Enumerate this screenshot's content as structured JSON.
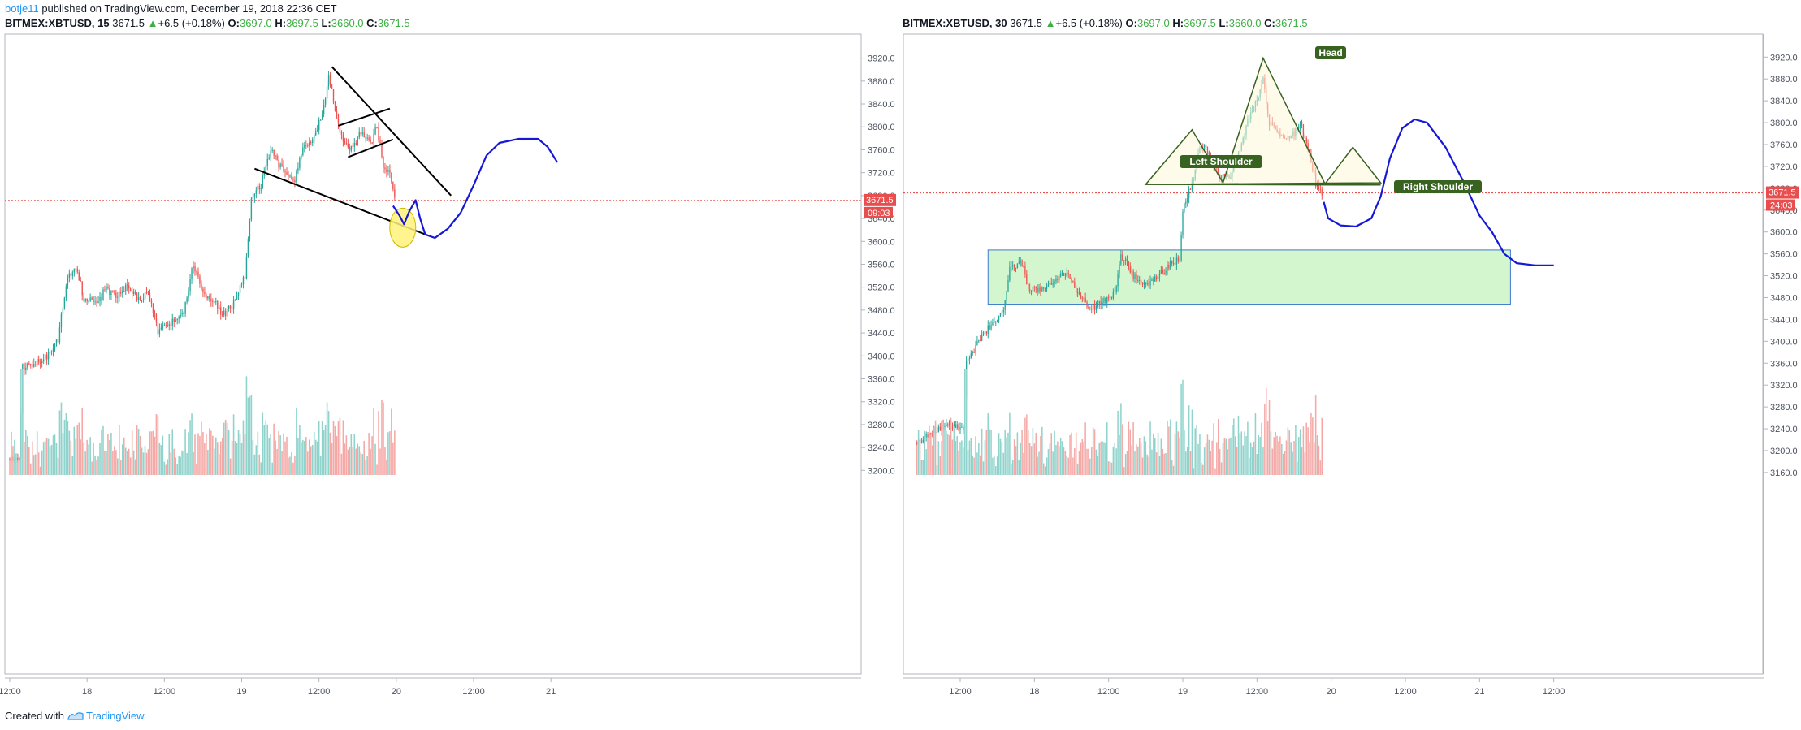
{
  "publisher": {
    "user": "botje11",
    "text": "published on TradingView.com, December 19, 2018 22:36 CET"
  },
  "footer": {
    "created_with": "Created with",
    "brand": "TradingView"
  },
  "colors": {
    "up": "#26a69a",
    "down": "#ef5350",
    "vol_up": "#8fd3cc",
    "vol_down": "#f5a9a6",
    "drawing_blue": "#1518d6",
    "pattern_green": "#38621f",
    "zone_fill": "#ccf5c6",
    "zone_border": "#3a7ad0",
    "price_line": "#e53935",
    "highlight_yellow": "#fff27a",
    "axis_text": "#4c525e",
    "grid": "#d7d9dd"
  },
  "chart_data": [
    {
      "type": "candlestick",
      "symbol": "BITMEX:XBTUSD",
      "interval": "15",
      "last": "3671.5",
      "change": "+6.5 (+0.18%)",
      "ohlc": {
        "o": "3697.0",
        "h": "3697.5",
        "l": "3660.0",
        "c": "3671.5"
      },
      "ohlc_labels": {
        "o": "O:",
        "h": "H:",
        "l": "L:",
        "c": "C:"
      },
      "price_ticks": [
        3200,
        3240,
        3280,
        3320,
        3360,
        3400,
        3440,
        3480,
        3520,
        3560,
        3600,
        3640,
        3680,
        3720,
        3760,
        3800,
        3840,
        3880,
        3920
      ],
      "price_tick_labels": [
        "3200.0",
        "3240.0",
        "3280.0",
        "3320.0",
        "3360.0",
        "3400.0",
        "3440.0",
        "3480.0",
        "3520.0",
        "3560.0",
        "3600.0",
        "3640.0",
        "3680.0",
        "3720.0",
        "3760.0",
        "3800.0",
        "3840.0",
        "3880.0",
        "3920.0"
      ],
      "ylim": [
        3182,
        3962
      ],
      "x_range": [
        0,
        72
      ],
      "time_ticks": [
        {
          "x": 0,
          "label": "12:00"
        },
        {
          "x": 12,
          "label": "18"
        },
        {
          "x": 24,
          "label": "12:00"
        },
        {
          "x": 36,
          "label": "19"
        },
        {
          "x": 48,
          "label": "12:00"
        },
        {
          "x": 60,
          "label": "20"
        },
        {
          "x": 72,
          "label": "12:00"
        },
        {
          "x": 84,
          "label": "21"
        }
      ],
      "x_max": 86,
      "price_label": "3671.5",
      "countdown": "09:03",
      "current_price": 3671.5,
      "anchors": [
        {
          "x": 0,
          "p": 3220
        },
        {
          "x": 1.5,
          "p": 3225
        },
        {
          "x": 2,
          "p": 3380
        },
        {
          "x": 4,
          "p": 3390
        },
        {
          "x": 6,
          "p": 3400
        },
        {
          "x": 7.5,
          "p": 3430
        },
        {
          "x": 9,
          "p": 3540
        },
        {
          "x": 10.5,
          "p": 3550
        },
        {
          "x": 11.5,
          "p": 3500
        },
        {
          "x": 13.5,
          "p": 3490
        },
        {
          "x": 15,
          "p": 3520
        },
        {
          "x": 16.5,
          "p": 3500
        },
        {
          "x": 18,
          "p": 3520
        },
        {
          "x": 20,
          "p": 3500
        },
        {
          "x": 21.5,
          "p": 3510
        },
        {
          "x": 23,
          "p": 3445
        },
        {
          "x": 25,
          "p": 3455
        },
        {
          "x": 27,
          "p": 3480
        },
        {
          "x": 28.5,
          "p": 3560
        },
        {
          "x": 30,
          "p": 3510
        },
        {
          "x": 31.5,
          "p": 3500
        },
        {
          "x": 33,
          "p": 3470
        },
        {
          "x": 35,
          "p": 3495
        },
        {
          "x": 36.5,
          "p": 3540
        },
        {
          "x": 37.5,
          "p": 3670
        },
        {
          "x": 39,
          "p": 3700
        },
        {
          "x": 40.5,
          "p": 3760
        },
        {
          "x": 42,
          "p": 3730
        },
        {
          "x": 44,
          "p": 3700
        },
        {
          "x": 45.5,
          "p": 3760
        },
        {
          "x": 47,
          "p": 3780
        },
        {
          "x": 48.5,
          "p": 3820
        },
        {
          "x": 49.5,
          "p": 3890
        },
        {
          "x": 50.5,
          "p": 3830
        },
        {
          "x": 51.5,
          "p": 3780
        },
        {
          "x": 53,
          "p": 3760
        },
        {
          "x": 54.5,
          "p": 3790
        },
        {
          "x": 56,
          "p": 3770
        },
        {
          "x": 57,
          "p": 3800
        },
        {
          "x": 58,
          "p": 3730
        },
        {
          "x": 59,
          "p": 3720
        },
        {
          "x": 59.8,
          "p": 3672
        }
      ],
      "drawings": {
        "upper_trendline": [
          {
            "x": 50,
            "p": 3905
          },
          {
            "x": 68.5,
            "p": 3680
          }
        ],
        "lower_trendline": [
          {
            "x": 38,
            "p": 3727
          },
          {
            "x": 65,
            "p": 3610
          }
        ],
        "channel_upper": [
          {
            "x": 51,
            "p": 3802
          },
          {
            "x": 59,
            "p": 3832
          }
        ],
        "channel_lower": [
          {
            "x": 52.5,
            "p": 3747
          },
          {
            "x": 59.5,
            "p": 3778
          }
        ],
        "projection": [
          {
            "x": 59.5,
            "p": 3662
          },
          {
            "x": 60.5,
            "p": 3645
          },
          {
            "x": 61.2,
            "p": 3630
          },
          {
            "x": 62,
            "p": 3652
          },
          {
            "x": 63,
            "p": 3672
          },
          {
            "x": 63.7,
            "p": 3640
          },
          {
            "x": 64.5,
            "p": 3612
          },
          {
            "x": 66,
            "p": 3606
          },
          {
            "x": 68,
            "p": 3622
          },
          {
            "x": 70,
            "p": 3650
          },
          {
            "x": 72,
            "p": 3698
          },
          {
            "x": 74,
            "p": 3750
          },
          {
            "x": 76,
            "p": 3772
          },
          {
            "x": 79,
            "p": 3779
          },
          {
            "x": 82,
            "p": 3779
          },
          {
            "x": 83.5,
            "p": 3765
          },
          {
            "x": 85,
            "p": 3738
          }
        ],
        "highlight": {
          "x": 61,
          "p": 3624
        }
      }
    },
    {
      "type": "candlestick",
      "symbol": "BITMEX:XBTUSD",
      "interval": "30",
      "last": "3671.5",
      "change": "+6.5 (+0.18%)",
      "ohlc": {
        "o": "3697.0",
        "h": "3697.5",
        "l": "3660.0",
        "c": "3671.5"
      },
      "ohlc_labels": {
        "o": "O:",
        "h": "H:",
        "l": "L:",
        "c": "C:"
      },
      "price_ticks": [
        3160,
        3200,
        3240,
        3280,
        3320,
        3360,
        3400,
        3440,
        3480,
        3520,
        3560,
        3600,
        3640,
        3680,
        3720,
        3760,
        3800,
        3840,
        3880,
        3920
      ],
      "price_tick_labels": [
        "3160.0",
        "3200.0",
        "3240.0",
        "3280.0",
        "3320.0",
        "3360.0",
        "3400.0",
        "3440.0",
        "3480.0",
        "3520.0",
        "3560.0",
        "3600.0",
        "3640.0",
        "3680.0",
        "3720.0",
        "3760.0",
        "3800.0",
        "3840.0",
        "3880.0",
        "3920.0"
      ],
      "ylim": [
        3145,
        3962
      ],
      "x_range": [
        0,
        72
      ],
      "time_ticks": [
        {
          "x": 0,
          "label": "12:00"
        },
        {
          "x": 12,
          "label": "18"
        },
        {
          "x": 24,
          "label": "12:00"
        },
        {
          "x": 36,
          "label": "19"
        },
        {
          "x": 48,
          "label": "12:00"
        },
        {
          "x": 60,
          "label": "20"
        },
        {
          "x": 72,
          "label": "12:00"
        },
        {
          "x": 84,
          "label": "21"
        },
        {
          "x": 96,
          "label": "12:00"
        }
      ],
      "x_max": 113,
      "price_label": "3671.5",
      "countdown": "24:03",
      "current_price": 3671.5,
      "anchors": [
        {
          "x": -7,
          "p": 3215
        },
        {
          "x": -5,
          "p": 3232
        },
        {
          "x": -3,
          "p": 3245
        },
        {
          "x": -1,
          "p": 3248
        },
        {
          "x": 0.5,
          "p": 3240
        },
        {
          "x": 1,
          "p": 3360
        },
        {
          "x": 3,
          "p": 3400
        },
        {
          "x": 5,
          "p": 3430
        },
        {
          "x": 7,
          "p": 3460
        },
        {
          "x": 8,
          "p": 3530
        },
        {
          "x": 10,
          "p": 3545
        },
        {
          "x": 11,
          "p": 3500
        },
        {
          "x": 13,
          "p": 3495
        },
        {
          "x": 15,
          "p": 3510
        },
        {
          "x": 17,
          "p": 3525
        },
        {
          "x": 19,
          "p": 3490
        },
        {
          "x": 21,
          "p": 3460
        },
        {
          "x": 23,
          "p": 3470
        },
        {
          "x": 25,
          "p": 3490
        },
        {
          "x": 26,
          "p": 3560
        },
        {
          "x": 28,
          "p": 3520
        },
        {
          "x": 30,
          "p": 3500
        },
        {
          "x": 32,
          "p": 3520
        },
        {
          "x": 34,
          "p": 3540
        },
        {
          "x": 35.5,
          "p": 3550
        },
        {
          "x": 36,
          "p": 3640
        },
        {
          "x": 37.5,
          "p": 3690
        },
        {
          "x": 39,
          "p": 3760
        },
        {
          "x": 40.5,
          "p": 3740
        },
        {
          "x": 42,
          "p": 3700
        },
        {
          "x": 43.5,
          "p": 3700
        },
        {
          "x": 45,
          "p": 3740
        },
        {
          "x": 46.5,
          "p": 3800
        },
        {
          "x": 48,
          "p": 3840
        },
        {
          "x": 49,
          "p": 3880
        },
        {
          "x": 50,
          "p": 3800
        },
        {
          "x": 52,
          "p": 3770
        },
        {
          "x": 54,
          "p": 3780
        },
        {
          "x": 55,
          "p": 3800
        },
        {
          "x": 56.5,
          "p": 3740
        },
        {
          "x": 57.5,
          "p": 3690
        },
        {
          "x": 58.5,
          "p": 3672
        }
      ],
      "pattern": {
        "left_shoulder_label": "Left Shoulder",
        "head_label": "Head",
        "right_shoulder_label": "Right Shoulder",
        "outline": [
          {
            "x": 30,
            "p": 3687
          },
          {
            "x": 37.5,
            "p": 3787
          },
          {
            "x": 42.5,
            "p": 3690
          },
          {
            "x": 49,
            "p": 3918
          },
          {
            "x": 59,
            "p": 3688
          },
          {
            "x": 63.5,
            "p": 3755
          },
          {
            "x": 68,
            "p": 3690
          }
        ],
        "neckline": [
          {
            "x": 30,
            "p": 3687
          },
          {
            "x": 68,
            "p": 3686
          }
        ]
      },
      "zone": {
        "x1": 4.5,
        "x2": 89,
        "p_top": 3567,
        "p_bottom": 3468
      },
      "projection": [
        {
          "x": 58.8,
          "p": 3655
        },
        {
          "x": 59.5,
          "p": 3625
        },
        {
          "x": 61.5,
          "p": 3612
        },
        {
          "x": 64,
          "p": 3610
        },
        {
          "x": 66.5,
          "p": 3625
        },
        {
          "x": 68,
          "p": 3665
        },
        {
          "x": 69.5,
          "p": 3735
        },
        {
          "x": 71.5,
          "p": 3790
        },
        {
          "x": 73.5,
          "p": 3806
        },
        {
          "x": 75.5,
          "p": 3800
        },
        {
          "x": 78.5,
          "p": 3755
        },
        {
          "x": 81.5,
          "p": 3690
        },
        {
          "x": 84,
          "p": 3630
        },
        {
          "x": 86,
          "p": 3600
        },
        {
          "x": 88,
          "p": 3560
        },
        {
          "x": 90,
          "p": 3543
        },
        {
          "x": 93,
          "p": 3539
        },
        {
          "x": 96,
          "p": 3539
        }
      ]
    }
  ]
}
